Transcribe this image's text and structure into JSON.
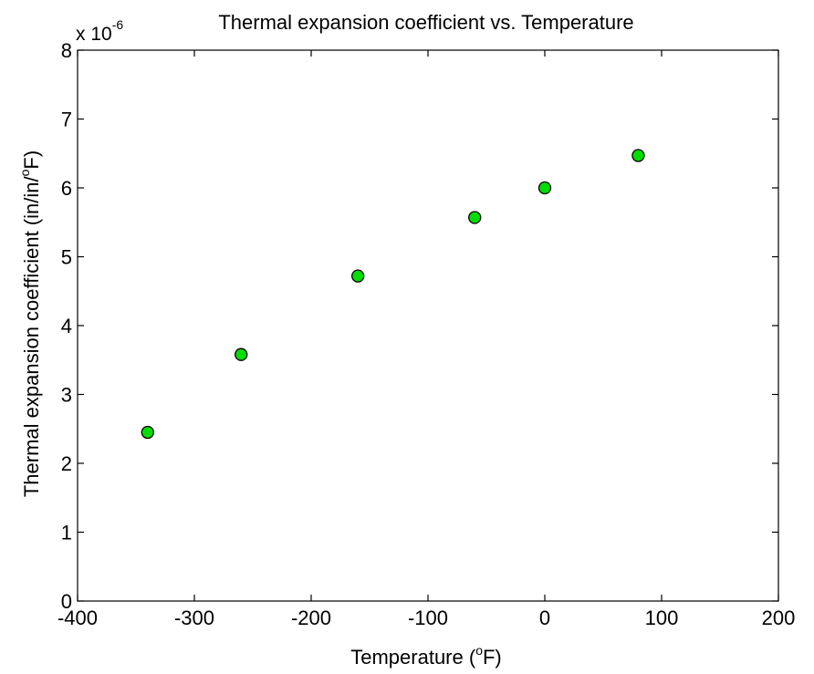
{
  "chart_data": {
    "type": "scatter",
    "title": "Thermal expansion coefficient vs. Temperature",
    "xlabel": {
      "pre": "Temperature (",
      "sup": "o",
      "post": "F)"
    },
    "ylabel": {
      "pre": "Thermal expansion coefficient (in/in/",
      "sup": "o",
      "post": "F)"
    },
    "y_multiplier": {
      "base": "x 10",
      "exponent": "-6"
    },
    "xlim": [
      -400,
      200
    ],
    "ylim": [
      0,
      8
    ],
    "x_ticks": [
      -400,
      -300,
      -200,
      -100,
      0,
      100,
      200
    ],
    "y_ticks": [
      0,
      1,
      2,
      3,
      4,
      5,
      6,
      7,
      8
    ],
    "x_tick_labels": [
      "-400",
      "-300",
      "-200",
      "-100",
      "0",
      "100",
      "200"
    ],
    "y_tick_labels": [
      "0",
      "1",
      "2",
      "3",
      "4",
      "5",
      "6",
      "7",
      "8"
    ],
    "grid": false,
    "marker_color": "#00dd00",
    "marker_edge_color": "#000000",
    "points": [
      {
        "x": -340,
        "y": 2.45
      },
      {
        "x": -260,
        "y": 3.58
      },
      {
        "x": -160,
        "y": 4.72
      },
      {
        "x": -60,
        "y": 5.57
      },
      {
        "x": 0,
        "y": 6.0
      },
      {
        "x": 80,
        "y": 6.47
      }
    ]
  }
}
